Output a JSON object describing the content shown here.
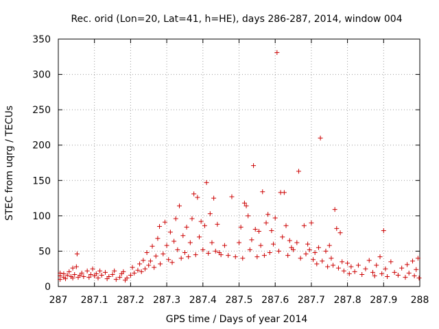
{
  "colors": {
    "series": "#cc0000",
    "grid": "#999999",
    "axis": "#000000"
  },
  "chart_data": {
    "type": "scatter",
    "title": "Rec. orid (Lon=20, Lat=41, h=HE), days 286-287, 2014, window 004",
    "xlabel": "GPS time / Days of year 2014",
    "ylabel": "STEC from uqrg / TECUs",
    "xlim": [
      287,
      288
    ],
    "ylim": [
      0,
      350
    ],
    "grid": true,
    "x_ticks": [
      287,
      287.1,
      287.2,
      287.3,
      287.4,
      287.5,
      287.6,
      287.7,
      287.8,
      287.9,
      288
    ],
    "x_tick_labels": [
      "287",
      "287.1",
      "287.2",
      "287.3",
      "287.4",
      "287.5",
      "287.6",
      "287.7",
      "287.8",
      "287.9",
      "288"
    ],
    "y_ticks": [
      0,
      50,
      100,
      150,
      200,
      250,
      300,
      350
    ],
    "y_tick_labels": [
      "0",
      "50",
      "100",
      "150",
      "200",
      "250",
      "300",
      "350"
    ],
    "marker": "+",
    "series": [
      {
        "name": "STEC",
        "points": [
          [
            287.005,
            10
          ],
          [
            287.005,
            15
          ],
          [
            287.005,
            19
          ],
          [
            287.015,
            13
          ],
          [
            287.015,
            18
          ],
          [
            287.02,
            11
          ],
          [
            287.025,
            16
          ],
          [
            287.03,
            21
          ],
          [
            287.035,
            14
          ],
          [
            287.04,
            26
          ],
          [
            287.04,
            12
          ],
          [
            287.045,
            17
          ],
          [
            287.05,
            28
          ],
          [
            287.052,
            46
          ],
          [
            287.055,
            13
          ],
          [
            287.06,
            16
          ],
          [
            287.065,
            19
          ],
          [
            287.07,
            14
          ],
          [
            287.08,
            22
          ],
          [
            287.085,
            13
          ],
          [
            287.09,
            17
          ],
          [
            287.095,
            25
          ],
          [
            287.1,
            15
          ],
          [
            287.105,
            18
          ],
          [
            287.11,
            12
          ],
          [
            287.115,
            22
          ],
          [
            287.12,
            16
          ],
          [
            287.13,
            20
          ],
          [
            287.135,
            11
          ],
          [
            287.14,
            14
          ],
          [
            287.15,
            17
          ],
          [
            287.155,
            22
          ],
          [
            287.16,
            10
          ],
          [
            287.17,
            13
          ],
          [
            287.175,
            18
          ],
          [
            287.18,
            21
          ],
          [
            287.185,
            9
          ],
          [
            287.19,
            12
          ],
          [
            287.2,
            16
          ],
          [
            287.205,
            27
          ],
          [
            287.21,
            19
          ],
          [
            287.22,
            23
          ],
          [
            287.225,
            32
          ],
          [
            287.23,
            21
          ],
          [
            287.235,
            37
          ],
          [
            287.24,
            25
          ],
          [
            287.245,
            48
          ],
          [
            287.25,
            30
          ],
          [
            287.255,
            36
          ],
          [
            287.26,
            57
          ],
          [
            287.265,
            27
          ],
          [
            287.27,
            43
          ],
          [
            287.275,
            68
          ],
          [
            287.28,
            85
          ],
          [
            287.282,
            32
          ],
          [
            287.29,
            46
          ],
          [
            287.295,
            91
          ],
          [
            287.3,
            58
          ],
          [
            287.305,
            38
          ],
          [
            287.31,
            77
          ],
          [
            287.315,
            34
          ],
          [
            287.32,
            64
          ],
          [
            287.325,
            96
          ],
          [
            287.33,
            52
          ],
          [
            287.335,
            114
          ],
          [
            287.34,
            40
          ],
          [
            287.345,
            72
          ],
          [
            287.35,
            48
          ],
          [
            287.355,
            84
          ],
          [
            287.36,
            42
          ],
          [
            287.365,
            62
          ],
          [
            287.37,
            96
          ],
          [
            287.375,
            131
          ],
          [
            287.38,
            45
          ],
          [
            287.385,
            126
          ],
          [
            287.39,
            70
          ],
          [
            287.395,
            92
          ],
          [
            287.4,
            52
          ],
          [
            287.405,
            86
          ],
          [
            287.41,
            147
          ],
          [
            287.415,
            47
          ],
          [
            287.42,
            103
          ],
          [
            287.425,
            62
          ],
          [
            287.43,
            125
          ],
          [
            287.435,
            50
          ],
          [
            287.44,
            88
          ],
          [
            287.445,
            48
          ],
          [
            287.45,
            45
          ],
          [
            287.46,
            58
          ],
          [
            287.47,
            44
          ],
          [
            287.48,
            127
          ],
          [
            287.49,
            42
          ],
          [
            287.5,
            62
          ],
          [
            287.505,
            84
          ],
          [
            287.51,
            40
          ],
          [
            287.515,
            118
          ],
          [
            287.52,
            114
          ],
          [
            287.525,
            100
          ],
          [
            287.53,
            52
          ],
          [
            287.535,
            66
          ],
          [
            287.54,
            171
          ],
          [
            287.545,
            81
          ],
          [
            287.55,
            42
          ],
          [
            287.555,
            78
          ],
          [
            287.56,
            58
          ],
          [
            287.565,
            134
          ],
          [
            287.57,
            44
          ],
          [
            287.575,
            90
          ],
          [
            287.58,
            102
          ],
          [
            287.585,
            48
          ],
          [
            287.59,
            79
          ],
          [
            287.595,
            60
          ],
          [
            287.6,
            97
          ],
          [
            287.605,
            331
          ],
          [
            287.61,
            50
          ],
          [
            287.615,
            133
          ],
          [
            287.62,
            70
          ],
          [
            287.625,
            133
          ],
          [
            287.63,
            86
          ],
          [
            287.635,
            44
          ],
          [
            287.64,
            65
          ],
          [
            287.645,
            55
          ],
          [
            287.65,
            52
          ],
          [
            287.66,
            62
          ],
          [
            287.665,
            163
          ],
          [
            287.67,
            40
          ],
          [
            287.68,
            86
          ],
          [
            287.685,
            46
          ],
          [
            287.69,
            60
          ],
          [
            287.695,
            52
          ],
          [
            287.7,
            90
          ],
          [
            287.705,
            38
          ],
          [
            287.71,
            48
          ],
          [
            287.715,
            32
          ],
          [
            287.72,
            55
          ],
          [
            287.725,
            210
          ],
          [
            287.73,
            36
          ],
          [
            287.74,
            50
          ],
          [
            287.745,
            28
          ],
          [
            287.75,
            58
          ],
          [
            287.755,
            40
          ],
          [
            287.76,
            30
          ],
          [
            287.765,
            109
          ],
          [
            287.77,
            82
          ],
          [
            287.775,
            26
          ],
          [
            287.78,
            76
          ],
          [
            287.785,
            35
          ],
          [
            287.79,
            22
          ],
          [
            287.8,
            33
          ],
          [
            287.805,
            18
          ],
          [
            287.81,
            28
          ],
          [
            287.82,
            21
          ],
          [
            287.83,
            30
          ],
          [
            287.84,
            17
          ],
          [
            287.85,
            25
          ],
          [
            287.86,
            37
          ],
          [
            287.87,
            20
          ],
          [
            287.875,
            15
          ],
          [
            287.88,
            30
          ],
          [
            287.89,
            42
          ],
          [
            287.895,
            18
          ],
          [
            287.9,
            79
          ],
          [
            287.905,
            25
          ],
          [
            287.91,
            14
          ],
          [
            287.92,
            35
          ],
          [
            287.93,
            20
          ],
          [
            287.94,
            16
          ],
          [
            287.95,
            26
          ],
          [
            287.96,
            13
          ],
          [
            287.965,
            31
          ],
          [
            287.97,
            19
          ],
          [
            287.98,
            36
          ],
          [
            287.985,
            15
          ],
          [
            287.99,
            24
          ],
          [
            287.995,
            40
          ],
          [
            287.998,
            12
          ]
        ]
      }
    ]
  }
}
